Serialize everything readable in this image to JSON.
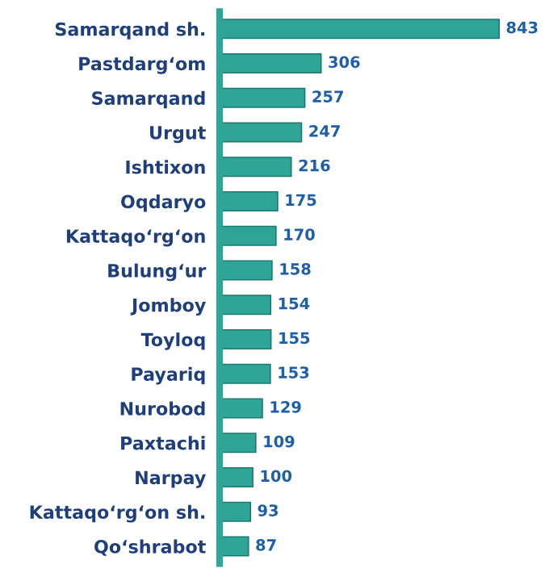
{
  "chart_data": {
    "type": "bar",
    "orientation": "horizontal",
    "categories": [
      "Samarqand sh.",
      "Pastdarg‘om",
      "Samarqand",
      "Urgut",
      "Ishtixon",
      "Oqdaryo",
      "Kattaqo‘rg‘on",
      "Bulung‘ur",
      "Jomboy",
      "Toyloq",
      "Payariq",
      "Nurobod",
      "Paxtachi",
      "Narpay",
      "Kattaqo‘rg‘on sh.",
      "Qo‘shrabot"
    ],
    "values": [
      843,
      306,
      257,
      247,
      216,
      175,
      170,
      158,
      154,
      155,
      153,
      129,
      109,
      100,
      93,
      87
    ],
    "color": "#2fa597",
    "data_labels": true,
    "grid": false,
    "legend": false
  }
}
